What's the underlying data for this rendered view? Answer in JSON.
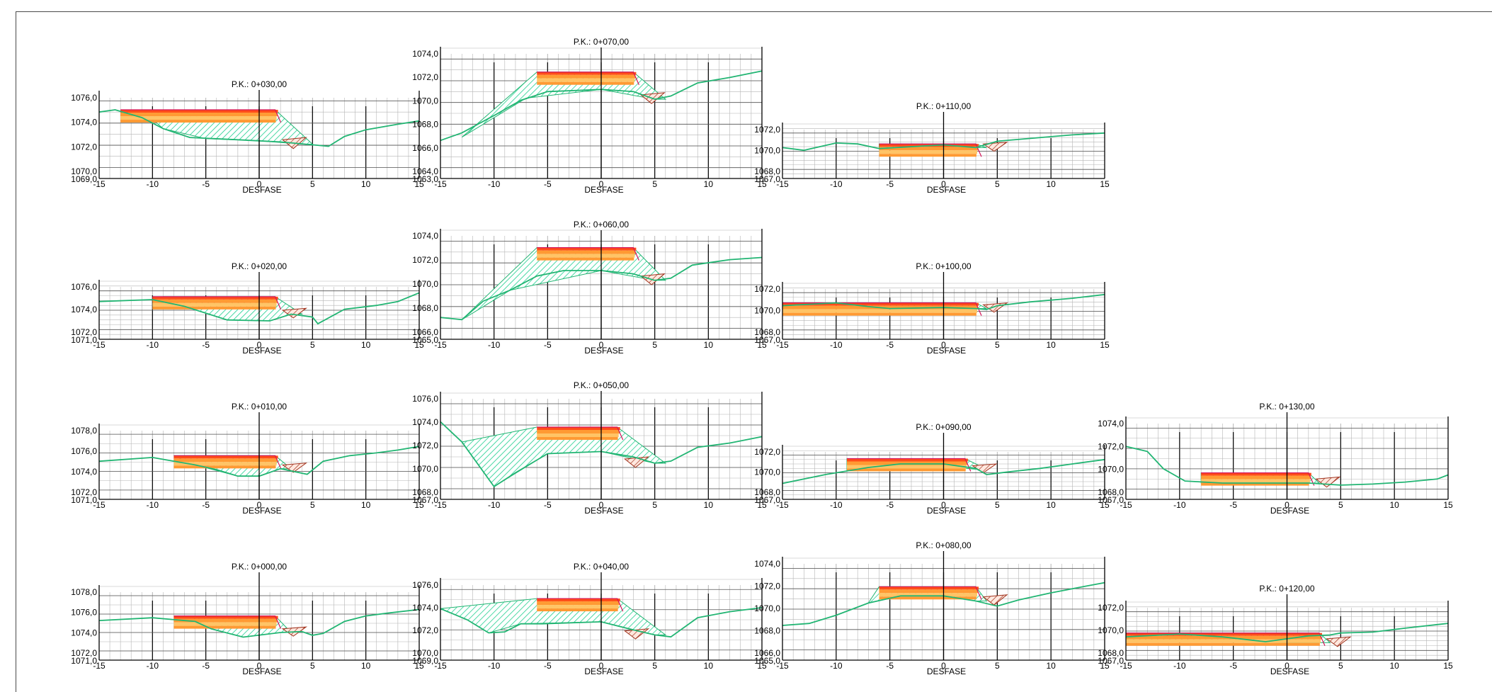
{
  "drawing": {
    "axis_title": "DESFASE",
    "x_ticks": [
      "-15",
      "-10",
      "-5",
      "0",
      "5",
      "10",
      "15"
    ],
    "colors": {
      "ground_line": "#22b573",
      "fill_hatch": "#1fcf8f",
      "cut_hatch": "#a0331e",
      "pavement_top": "#ff4d1a",
      "pavement_mid": "#ff9a33",
      "pavement_light": "#ffc466",
      "grid": "#b5b5b5",
      "axis": "#000000"
    },
    "sections": [
      {
        "label": "P.K.: 0+030,00",
        "y_labels": [
          "1076,0",
          "1074,0",
          "1072,0",
          "1070,0",
          "1069,0"
        ],
        "ground": [
          [
            -15,
            1075.0
          ],
          [
            -13.5,
            1075.2
          ],
          [
            -11,
            1074.5
          ],
          [
            -9,
            1073.5
          ],
          [
            -6.5,
            1072.7
          ],
          [
            -2,
            1072.5
          ],
          [
            2,
            1072.3
          ],
          [
            5.5,
            1072.0
          ],
          [
            6.5,
            1071.9
          ],
          [
            8,
            1072.8
          ],
          [
            10,
            1073.4
          ],
          [
            13,
            1073.9
          ],
          [
            15,
            1074.2
          ]
        ],
        "road_left": -13,
        "road_right": 1.5,
        "road_z": 1075.2,
        "fill_bottom": [
          [
            -9,
            1073.5
          ],
          [
            -5,
            1072.6
          ],
          [
            0,
            1072.4
          ],
          [
            4,
            1072.1
          ]
        ],
        "z_min": 1069,
        "z_max": 1076.8
      },
      {
        "label": "P.K.: 0+070,00",
        "y_labels": [
          "1074,0",
          "1072,0",
          "1070,0",
          "1068,0",
          "1066,0",
          "1064,0",
          "1063,0"
        ],
        "ground": [
          [
            -15,
            1066.5
          ],
          [
            -13,
            1067.2
          ],
          [
            -10,
            1068.8
          ],
          [
            -7.5,
            1070.2
          ],
          [
            -5,
            1071.0
          ],
          [
            0,
            1071.2
          ],
          [
            3,
            1071.0
          ],
          [
            5,
            1070.3
          ],
          [
            6.5,
            1070.6
          ],
          [
            9,
            1071.8
          ],
          [
            12,
            1072.3
          ],
          [
            15,
            1072.9
          ]
        ],
        "road_left": -6,
        "road_right": 3,
        "road_z": 1072.8,
        "fill_bottom": [
          [
            -13,
            1066.8
          ],
          [
            -7,
            1070.4
          ],
          [
            0,
            1071.2
          ],
          [
            5,
            1070.3
          ]
        ],
        "z_min": 1063,
        "z_max": 1075
      },
      {
        "label": "P.K.: 0+110,00",
        "y_labels": [
          "1072,0",
          "1070,0",
          "1068,0",
          "1067,0"
        ],
        "ground": [
          [
            -15,
            1070.4
          ],
          [
            -13,
            1070.1
          ],
          [
            -10,
            1070.9
          ],
          [
            -8,
            1070.8
          ],
          [
            -6,
            1070.3
          ],
          [
            0,
            1070.7
          ],
          [
            3,
            1070.4
          ],
          [
            5,
            1071.1
          ],
          [
            8,
            1071.4
          ],
          [
            12,
            1071.8
          ],
          [
            15,
            1072.0
          ]
        ],
        "road_left": -6,
        "road_right": 3,
        "road_z": 1070.8,
        "fill_bottom": [
          [
            -6,
            1070.3
          ],
          [
            0,
            1070.5
          ],
          [
            3,
            1070.4
          ]
        ],
        "z_min": 1067,
        "z_max": 1073
      },
      {
        "label": "P.K.: 0+020,00",
        "y_labels": [
          "1076,0",
          "1074,0",
          "1072,0",
          "1071,0"
        ],
        "ground": [
          [
            -15,
            1074.9
          ],
          [
            -10,
            1075.1
          ],
          [
            -7,
            1074.4
          ],
          [
            -3,
            1073.0
          ],
          [
            1,
            1072.9
          ],
          [
            3,
            1073.6
          ],
          [
            5,
            1073.3
          ],
          [
            5.5,
            1072.6
          ],
          [
            8,
            1074.1
          ],
          [
            11,
            1074.5
          ],
          [
            13,
            1074.9
          ],
          [
            15,
            1075.8
          ]
        ],
        "road_left": -10,
        "road_right": 1.5,
        "road_z": 1075.4,
        "fill_bottom": [
          [
            -7,
            1074.4
          ],
          [
            -3,
            1073.0
          ],
          [
            1,
            1072.9
          ],
          [
            3,
            1073.6
          ]
        ],
        "z_min": 1071,
        "z_max": 1077
      },
      {
        "label": "P.K.: 0+060,00",
        "y_labels": [
          "1074,0",
          "1072,0",
          "1070,0",
          "1068,0",
          "1066,0",
          "1065,0"
        ],
        "ground": [
          [
            -15,
            1067.0
          ],
          [
            -13,
            1066.8
          ],
          [
            -11,
            1068.5
          ],
          [
            -8.5,
            1069.5
          ],
          [
            -6,
            1070.8
          ],
          [
            -3.5,
            1071.3
          ],
          [
            0,
            1071.3
          ],
          [
            3,
            1071.0
          ],
          [
            5,
            1070.4
          ],
          [
            6.5,
            1070.6
          ],
          [
            8.5,
            1071.8
          ],
          [
            12,
            1072.3
          ],
          [
            15,
            1072.5
          ]
        ],
        "road_left": -6,
        "road_right": 3,
        "road_z": 1073.4,
        "fill_bottom": [
          [
            -13,
            1066.8
          ],
          [
            -8.5,
            1069.5
          ],
          [
            0,
            1071.3
          ],
          [
            5,
            1070.4
          ]
        ],
        "z_min": 1065,
        "z_max": 1075
      },
      {
        "label": "P.K.: 0+100,00",
        "y_labels": [
          "1072,0",
          "1070,0",
          "1068,0",
          "1067,0"
        ],
        "ground": [
          [
            -15,
            1070.6
          ],
          [
            -10,
            1070.9
          ],
          [
            -7,
            1070.5
          ],
          [
            -5,
            1070.3
          ],
          [
            0,
            1070.4
          ],
          [
            3,
            1070.3
          ],
          [
            4,
            1070.2
          ],
          [
            5,
            1070.6
          ],
          [
            8,
            1071.0
          ],
          [
            12,
            1071.4
          ],
          [
            15,
            1071.8
          ]
        ],
        "road_left": -15,
        "road_right": 3,
        "road_z": 1070.9,
        "fill_bottom": [
          [
            -7,
            1070.5
          ],
          [
            0,
            1070.4
          ],
          [
            3,
            1070.3
          ]
        ],
        "z_min": 1067,
        "z_max": 1073
      },
      {
        "label": "P.K.: 0+010,00",
        "y_labels": [
          "1078,0",
          "1076,0",
          "1074,0",
          "1072,0",
          "1071,0"
        ],
        "ground": [
          [
            -15,
            1075.1
          ],
          [
            -10,
            1075.5
          ],
          [
            -6,
            1074.7
          ],
          [
            -4,
            1074.2
          ],
          [
            -2,
            1073.5
          ],
          [
            0,
            1073.5
          ],
          [
            2,
            1074.3
          ],
          [
            4.5,
            1073.7
          ],
          [
            6,
            1075.1
          ],
          [
            8.5,
            1075.7
          ],
          [
            11,
            1076.0
          ],
          [
            13,
            1076.3
          ],
          [
            15,
            1076.7
          ]
        ],
        "road_left": -8,
        "road_right": 1.5,
        "road_z": 1075.7,
        "fill_bottom": [
          [
            -6,
            1074.7
          ],
          [
            -2,
            1073.5
          ],
          [
            0,
            1073.5
          ],
          [
            2,
            1074.3
          ]
        ],
        "z_min": 1071,
        "z_max": 1079
      },
      {
        "label": "P.K.: 0+050,00",
        "y_labels": [
          "1076,0",
          "1074,0",
          "1072,0",
          "1070,0",
          "1068,0",
          "1067,0"
        ],
        "ground": [
          [
            -15,
            1074.3
          ],
          [
            -13,
            1072.4
          ],
          [
            -10,
            1068.2
          ],
          [
            -8,
            1069.5
          ],
          [
            -5,
            1071.3
          ],
          [
            0,
            1071.5
          ],
          [
            3,
            1071.0
          ],
          [
            5,
            1070.4
          ],
          [
            6.5,
            1070.6
          ],
          [
            9,
            1071.9
          ],
          [
            12,
            1072.3
          ],
          [
            15,
            1072.9
          ]
        ],
        "road_left": -6,
        "road_right": 1.5,
        "road_z": 1073.8,
        "fill_bottom": [
          [
            -13,
            1072.4
          ],
          [
            -10,
            1068.2
          ],
          [
            -5,
            1071.3
          ],
          [
            0,
            1071.5
          ],
          [
            5,
            1070.4
          ]
        ],
        "z_min": 1067,
        "z_max": 1077
      },
      {
        "label": "P.K.: 0+090,00",
        "y_labels": [
          "1072,0",
          "1070,0",
          "1068,0",
          "1067,0"
        ],
        "ground": [
          [
            -15,
            1068.8
          ],
          [
            -11,
            1069.8
          ],
          [
            -7,
            1070.6
          ],
          [
            -4,
            1071.0
          ],
          [
            0,
            1071.0
          ],
          [
            3,
            1070.5
          ],
          [
            4,
            1069.8
          ],
          [
            6,
            1070.1
          ],
          [
            9,
            1070.5
          ],
          [
            12,
            1071.0
          ],
          [
            15,
            1071.5
          ]
        ],
        "road_left": -9,
        "road_right": 2,
        "road_z": 1071.6,
        "fill_bottom": [
          [
            -9,
            1070.2
          ],
          [
            -4,
            1070.8
          ],
          [
            0,
            1070.7
          ],
          [
            3,
            1070.4
          ]
        ],
        "z_min": 1067,
        "z_max": 1073
      },
      {
        "label": "P.K.: 0+130,00",
        "y_labels": [
          "1074,0",
          "1072,0",
          "1070,0",
          "1068,0",
          "1067,0"
        ],
        "ground": [
          [
            -15,
            1072.2
          ],
          [
            -13,
            1071.7
          ],
          [
            -11.5,
            1070.0
          ],
          [
            -9.5,
            1068.8
          ],
          [
            -6,
            1068.6
          ],
          [
            -1,
            1068.6
          ],
          [
            2,
            1068.6
          ],
          [
            5,
            1068.4
          ],
          [
            8,
            1068.5
          ],
          [
            11,
            1068.7
          ],
          [
            14,
            1069.0
          ],
          [
            15,
            1069.4
          ]
        ],
        "road_left": -8,
        "road_right": 2,
        "road_z": 1069.6,
        "fill_bottom": [
          [
            -8,
            1068.6
          ],
          [
            2,
            1068.6
          ]
        ],
        "z_min": 1067,
        "z_max": 1075
      },
      {
        "label": "P.K.: 0+000,00",
        "y_labels": [
          "1078,0",
          "1076,0",
          "1074,0",
          "1072,0",
          "1071,0"
        ],
        "ground": [
          [
            -15,
            1075.3
          ],
          [
            -10,
            1075.6
          ],
          [
            -6,
            1075.2
          ],
          [
            -4.5,
            1074.4
          ],
          [
            -1.5,
            1073.5
          ],
          [
            2,
            1074.0
          ],
          [
            4,
            1074.1
          ],
          [
            5,
            1073.7
          ],
          [
            6,
            1073.9
          ],
          [
            8,
            1075.2
          ],
          [
            10,
            1075.8
          ],
          [
            12,
            1076.1
          ],
          [
            15,
            1076.5
          ]
        ],
        "road_left": -8,
        "road_right": 1.5,
        "road_z": 1075.8,
        "fill_bottom": [
          [
            -4.5,
            1074.4
          ],
          [
            -1.5,
            1073.5
          ],
          [
            2,
            1074.0
          ]
        ],
        "z_min": 1071,
        "z_max": 1079
      },
      {
        "label": "P.K.: 0+040,00",
        "y_labels": [
          "1076,0",
          "1074,0",
          "1072,0",
          "1070,0",
          "1069,0"
        ],
        "ground": [
          [
            -15,
            1074.1
          ],
          [
            -12.5,
            1073.0
          ],
          [
            -10.5,
            1071.7
          ],
          [
            -9,
            1071.8
          ],
          [
            -7.5,
            1072.6
          ],
          [
            -5.5,
            1072.6
          ],
          [
            0,
            1072.8
          ],
          [
            3,
            1072.0
          ],
          [
            5,
            1071.5
          ],
          [
            6.5,
            1071.3
          ],
          [
            9,
            1073.2
          ],
          [
            12,
            1073.8
          ],
          [
            15,
            1074.2
          ]
        ],
        "road_left": -6,
        "road_right": 1.5,
        "road_z": 1075.1,
        "fill_bottom": [
          [
            -15,
            1074.1
          ],
          [
            -12.5,
            1073.0
          ],
          [
            -10.5,
            1071.7
          ],
          [
            -7.5,
            1072.6
          ],
          [
            0,
            1072.8
          ],
          [
            5,
            1071.5
          ]
        ],
        "z_min": 1069,
        "z_max": 1077
      },
      {
        "label": "P.K.: 0+080,00",
        "y_labels": [
          "1074,0",
          "1072,0",
          "1070,0",
          "1068,0",
          "1066,0",
          "1065,0"
        ],
        "ground": [
          [
            -15,
            1068.4
          ],
          [
            -12.5,
            1068.6
          ],
          [
            -10,
            1069.4
          ],
          [
            -7,
            1070.6
          ],
          [
            -4,
            1071.3
          ],
          [
            0,
            1071.3
          ],
          [
            3,
            1070.8
          ],
          [
            5,
            1070.3
          ],
          [
            7,
            1070.9
          ],
          [
            10,
            1071.6
          ],
          [
            13,
            1072.2
          ],
          [
            15,
            1072.6
          ]
        ],
        "road_left": -6,
        "road_right": 3,
        "road_z": 1072.2,
        "fill_bottom": [
          [
            -7,
            1070.6
          ],
          [
            -4,
            1071.3
          ],
          [
            0,
            1071.3
          ],
          [
            3,
            1070.8
          ]
        ],
        "z_min": 1065,
        "z_max": 1075
      },
      {
        "label": "P.K.: 0+120,00",
        "y_labels": [
          "1072,0",
          "1070,0",
          "1068,0",
          "1067,0"
        ],
        "ground": [
          [
            -15,
            1069.4
          ],
          [
            -10,
            1069.7
          ],
          [
            -6,
            1069.4
          ],
          [
            -2,
            1068.9
          ],
          [
            0,
            1069.2
          ],
          [
            2,
            1069.5
          ],
          [
            4,
            1069.6
          ],
          [
            5,
            1069.8
          ],
          [
            8,
            1069.9
          ],
          [
            11,
            1070.3
          ],
          [
            15,
            1070.8
          ]
        ],
        "road_left": -15,
        "road_right": 3,
        "road_z": 1069.8,
        "fill_bottom": [
          [
            -15,
            1069.0
          ],
          [
            0,
            1068.8
          ],
          [
            3,
            1068.8
          ]
        ],
        "z_min": 1067,
        "z_max": 1073
      }
    ]
  }
}
